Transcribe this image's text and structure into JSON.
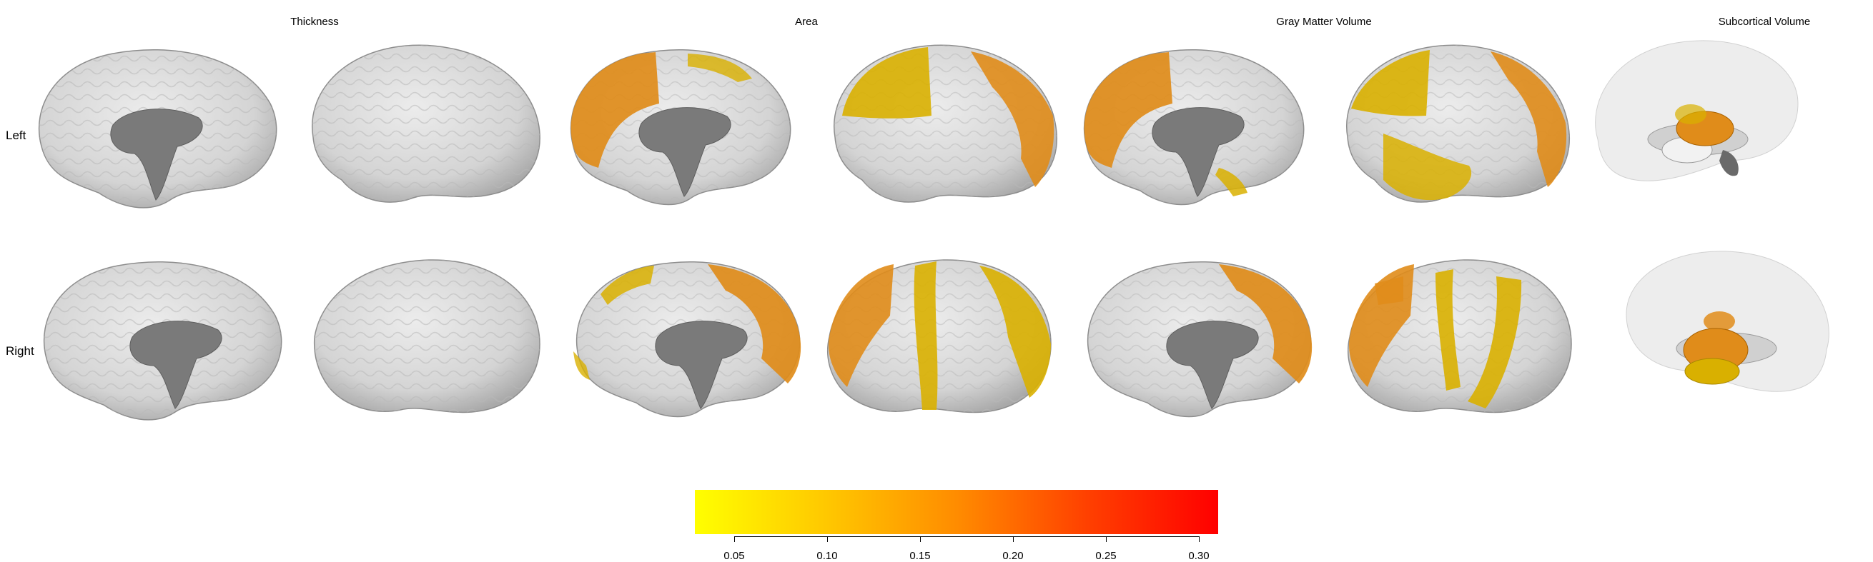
{
  "column_titles": {
    "thickness": "Thickness",
    "area": "Area",
    "gmv": "Gray Matter Volume",
    "subcortical": "Subcortical Volume"
  },
  "row_labels": {
    "left": "Left",
    "right": "Right"
  },
  "colorbar": {
    "gradient": [
      "#ffff00",
      "#ffc800",
      "#ff8c00",
      "#ff4000",
      "#ff0000"
    ],
    "ticks": [
      "0.05",
      "0.10",
      "0.15",
      "0.20",
      "0.25",
      "0.30"
    ]
  },
  "colors": {
    "cortex": "#d8d8d8",
    "medial_wall": "#7a7a7a",
    "highlight_yellow": "#d9b000",
    "highlight_orange": "#e08c1a"
  }
}
